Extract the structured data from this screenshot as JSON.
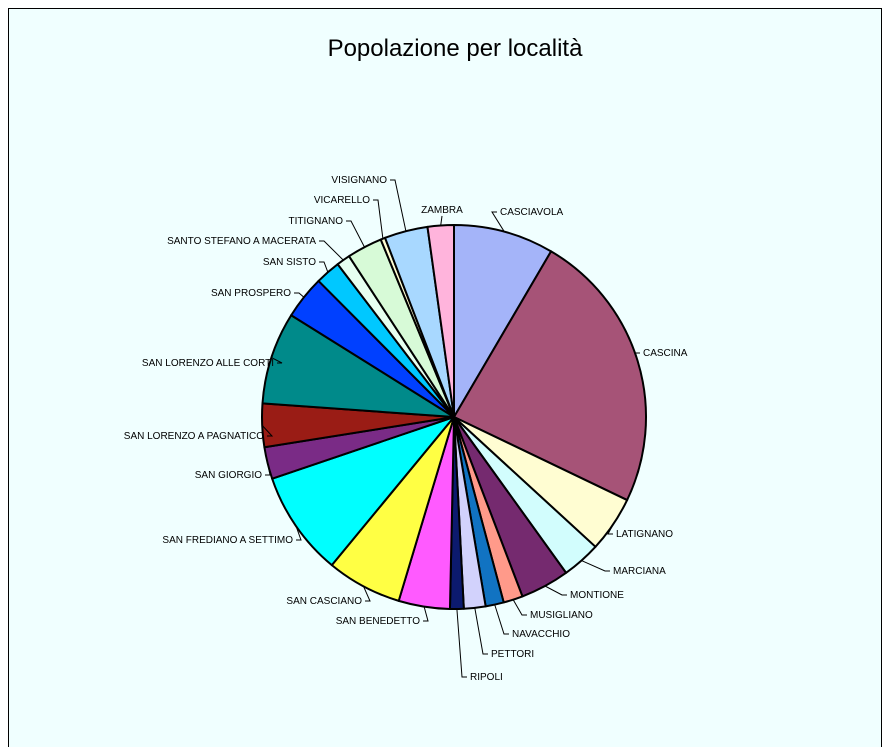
{
  "chart_data": {
    "type": "pie",
    "title": "Popolazione per località",
    "background": "#f0ffff",
    "slices": [
      {
        "label": "CASCIAVOLA",
        "value": 8.8,
        "color": "#a4b4f9"
      },
      {
        "label": "CASCINA",
        "value": 24.7,
        "color": "#a65377"
      },
      {
        "label": "LATIGNANO",
        "value": 4.9,
        "color": "#fffdd2"
      },
      {
        "label": "MARCIANA",
        "value": 3.4,
        "color": "#d2fdfd"
      },
      {
        "label": "MONTIONE",
        "value": 4.3,
        "color": "#752a6f"
      },
      {
        "label": "MUSIGLIANO",
        "value": 1.7,
        "color": "#ff9a8a"
      },
      {
        "label": "NAVACCHIO",
        "value": 1.6,
        "color": "#1173c2"
      },
      {
        "label": "PETTORI",
        "value": 1.9,
        "color": "#d2d2fc"
      },
      {
        "label": "RIPOLI",
        "value": 1.2,
        "color": "#0c1a6e"
      },
      {
        "label": "SAN BENEDETTO",
        "value": 4.5,
        "color": "#ff5aff"
      },
      {
        "label": "SAN CASCIANO",
        "value": 6.6,
        "color": "#ffff44"
      },
      {
        "label": "SAN FREDIANO A SETTIMO",
        "value": 9.2,
        "color": "#00ffff"
      },
      {
        "label": "SAN GIORGIO",
        "value": 2.8,
        "color": "#7a2b86"
      },
      {
        "label": "SAN LORENZO A PAGNATICO",
        "value": 3.8,
        "color": "#9a1c15"
      },
      {
        "label": "SAN LORENZO ALLE CORTI",
        "value": 8.1,
        "color": "#008a8a"
      },
      {
        "label": "SAN PROSPERO",
        "value": 3.8,
        "color": "#0040ff"
      },
      {
        "label": "SAN SISTO",
        "value": 2.2,
        "color": "#00c8ff"
      },
      {
        "label": "SANTO STEFANO A MACERATA",
        "value": 1.2,
        "color": "#e6fff0"
      },
      {
        "label": "TITIGNANO",
        "value": 3.1,
        "color": "#d7fad7"
      },
      {
        "label": "VICARELLO",
        "value": 0.4,
        "color": "#fffdd2"
      },
      {
        "label": "VISIGNANO",
        "value": 3.8,
        "color": "#a8d8ff"
      },
      {
        "label": "ZAMBRA",
        "value": 2.3,
        "color": "#ffb4dc"
      }
    ]
  }
}
